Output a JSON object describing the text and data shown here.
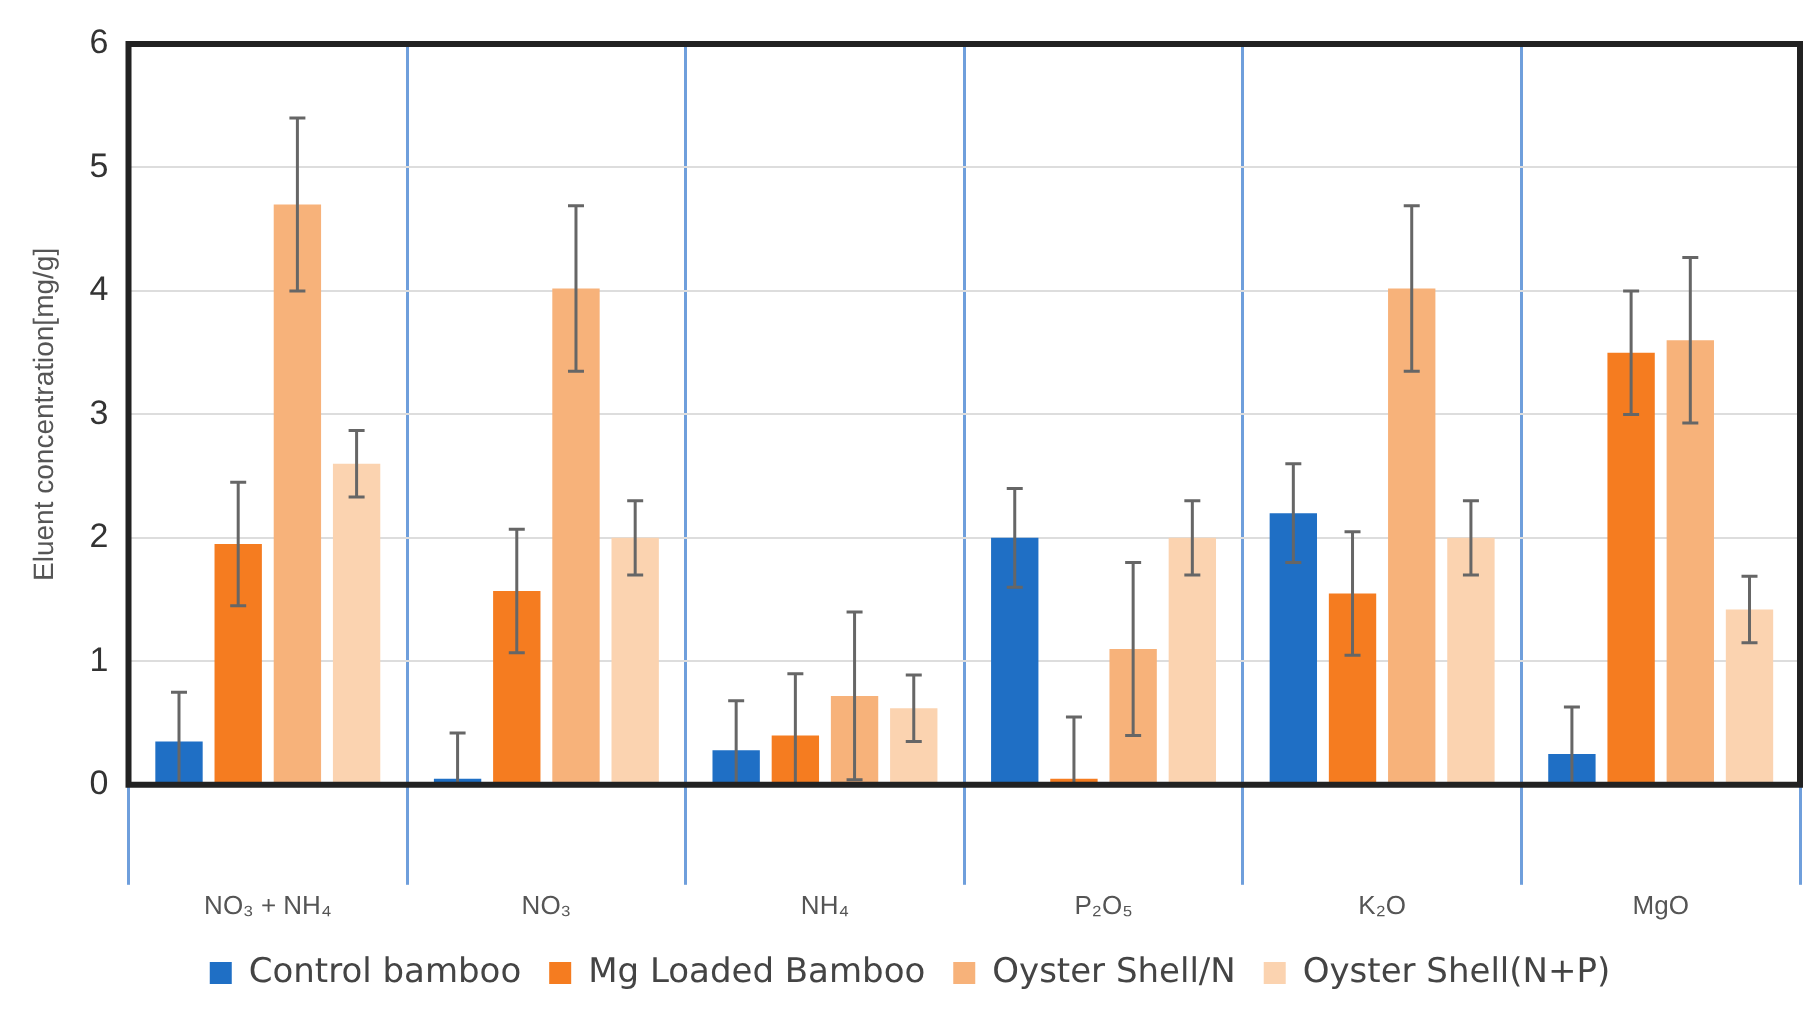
{
  "chart_data": {
    "type": "bar",
    "ylabel": "Eluent concentration[mg/g]",
    "categories": [
      "NO₃ + NH₄",
      "NO₃",
      "NH₄",
      "P₂O₅",
      "K₂O",
      "MgO"
    ],
    "series": [
      {
        "name": "Control bamboo",
        "color": "#1f6fc5",
        "values": [
          0.35,
          0,
          0.28,
          2.0,
          2.2,
          0.25
        ],
        "errors": [
          0.4,
          [
            0,
            0.42
          ],
          0.4,
          0.4,
          0.4,
          0.38
        ]
      },
      {
        "name": "Mg Loaded Bamboo",
        "color": "#f57c20",
        "values": [
          1.95,
          1.57,
          0.4,
          0,
          1.55,
          3.5
        ],
        "errors": [
          0.5,
          0.5,
          0.5,
          [
            0,
            0.55
          ],
          0.5,
          0.5
        ]
      },
      {
        "name": "Oyster Shell/N",
        "color": "#f7b27a",
        "values": [
          4.7,
          4.02,
          0.72,
          1.1,
          4.02,
          3.6
        ],
        "errors": [
          0.7,
          0.67,
          0.68,
          0.7,
          0.67,
          0.67
        ]
      },
      {
        "name": "Oyster Shell(N+P)",
        "color": "#fbd3b0",
        "values": [
          2.6,
          2.0,
          0.62,
          2.0,
          2.0,
          1.42
        ],
        "errors": [
          0.27,
          0.3,
          0.27,
          0.3,
          0.3,
          0.27
        ]
      }
    ],
    "ylim": [
      0,
      6
    ],
    "yticks": [
      0,
      1,
      2,
      3,
      4,
      5,
      6
    ],
    "grid": true,
    "legend": "bottom"
  }
}
